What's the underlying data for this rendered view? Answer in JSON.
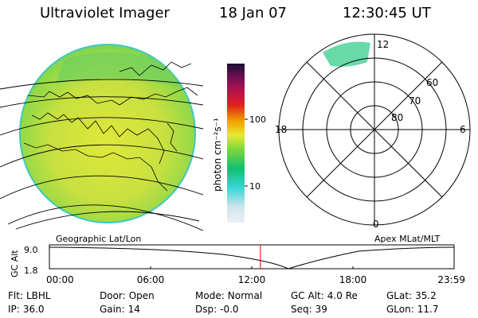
{
  "header": {
    "title": "Ultraviolet Imager",
    "date": "18 Jan 07",
    "time": "12:30:45 UT"
  },
  "colorbar": {
    "unit": "photon cm⁻²s⁻¹",
    "ticks": [
      "100",
      "10"
    ],
    "scale": "log",
    "colors": [
      "#e8ecf0",
      "#36d6d6",
      "#10c070",
      "#9fdc3c",
      "#e8e830",
      "#f0a000",
      "#e02020",
      "#b01050",
      "#201040"
    ]
  },
  "polar": {
    "mlt_labels": {
      "top": "12",
      "bottom": "0",
      "left": "18",
      "right": "6"
    },
    "lat_labels": [
      "60",
      "70",
      "80"
    ]
  },
  "orbit": {
    "left_label": "Geographic Lat/Lon",
    "right_label": "Apex MLat/MLT",
    "yaxis_label": "GC Alt",
    "ytick_top": "9.0",
    "ytick_bottom": "1.8",
    "time_ticks": [
      "00:00",
      "06:00",
      "12:00",
      "18:00",
      "23:59"
    ],
    "current_time_fraction": 0.5214
  },
  "footer": {
    "filter": {
      "label": "Flt:",
      "value": "LBHL"
    },
    "door": {
      "label": "Door:",
      "value": "Open"
    },
    "mode": {
      "label": "Mode:",
      "value": "Normal"
    },
    "gcalt": {
      "label": "GC Alt:",
      "value": "4.0 Re"
    },
    "glat": {
      "label": "GLat:",
      "value": "35.2"
    },
    "ip": {
      "label": "IP:",
      "value": "36.0"
    },
    "gain": {
      "label": "Gain:",
      "value": "14"
    },
    "dsp": {
      "label": "Dsp:",
      "value": "-0.0"
    },
    "seq": {
      "label": "Seq:",
      "value": "39"
    },
    "glon": {
      "label": "GLon:",
      "value": "11.7"
    }
  }
}
